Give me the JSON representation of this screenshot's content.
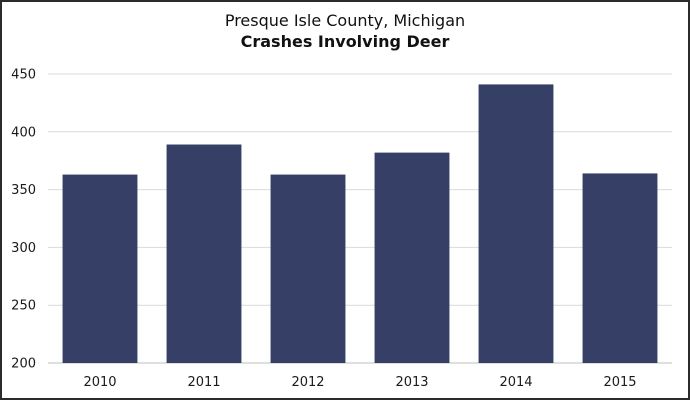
{
  "chart_data": {
    "type": "bar",
    "title": "Presque Isle County, Michigan",
    "subtitle": "Crashes Involving Deer",
    "categories": [
      "2010",
      "2011",
      "2012",
      "2013",
      "2014",
      "2015"
    ],
    "values": [
      363,
      389,
      363,
      382,
      441,
      364
    ],
    "ylim": [
      200,
      450
    ],
    "yticks": [
      200,
      250,
      300,
      350,
      400,
      450
    ],
    "xlabel": "",
    "ylabel": "",
    "grid": true,
    "bar_color": "#363f66",
    "grid_color": "#d9d9d9"
  }
}
